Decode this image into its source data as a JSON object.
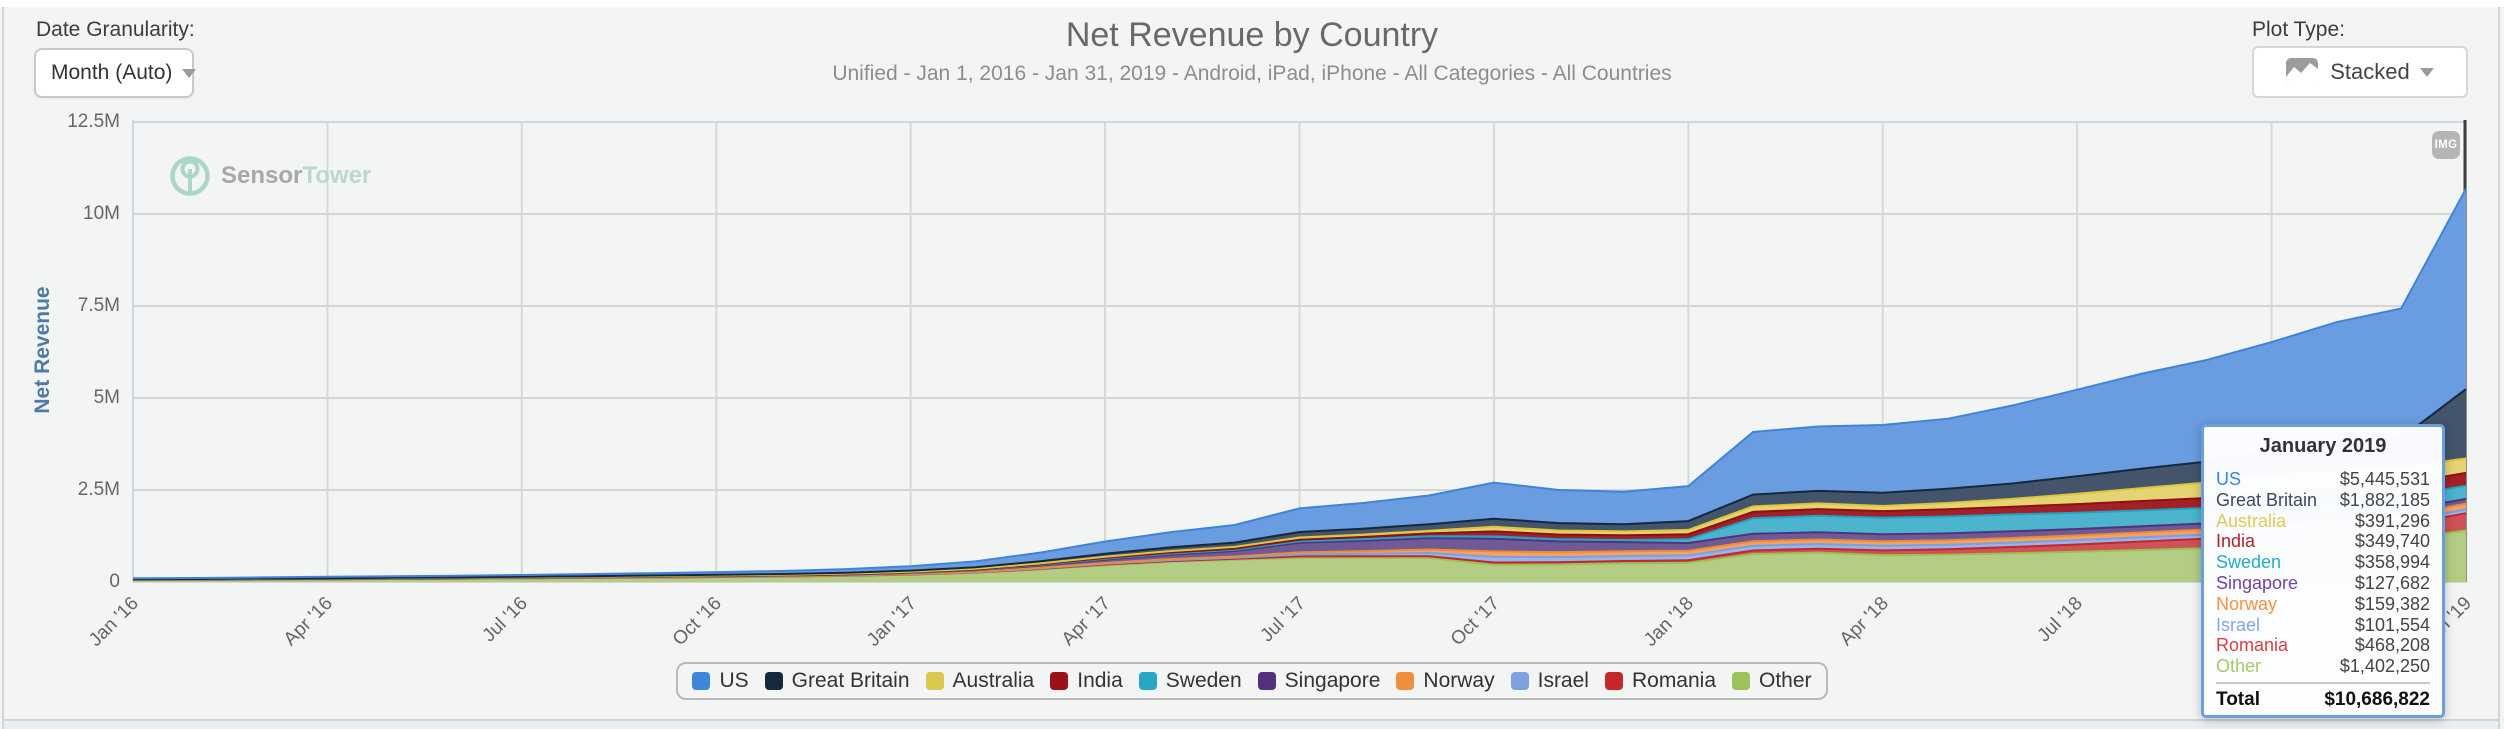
{
  "header": {
    "date_granularity_label": "Date Granularity:",
    "date_granularity_value": "Month (Auto)",
    "title": "Net Revenue by Country",
    "subtitle": "Unified - Jan 1, 2016 - Jan 31, 2019 - Android, iPad, iPhone - All Categories - All Countries",
    "plot_type_label": "Plot Type:",
    "plot_type_value": "Stacked"
  },
  "watermark": {
    "brand_bold": "Sensor",
    "brand_light": "Tower"
  },
  "img_badge_label": "IMG",
  "chart_data": {
    "type": "area",
    "stacked": true,
    "title": "Net Revenue by Country",
    "subtitle": "Unified - Jan 1, 2016 - Jan 31, 2019 - Android, iPad, iPhone - All Categories - All Countries",
    "ylabel": "Net Revenue",
    "ylim": [
      0,
      12500000
    ],
    "ytick_labels": [
      "0",
      "2.5M",
      "5M",
      "7.5M",
      "10M",
      "12.5M"
    ],
    "xtick_labels": [
      "Jan '16",
      "Apr '16",
      "Jul '16",
      "Oct '16",
      "Jan '17",
      "Apr '17",
      "Jul '17",
      "Oct '17",
      "Jan '18",
      "Apr '18",
      "Jul '18",
      "Oct '18",
      "Jan '19"
    ],
    "months": [
      "Jan 2016",
      "Feb 2016",
      "Mar 2016",
      "Apr 2016",
      "May 2016",
      "Jun 2016",
      "Jul 2016",
      "Aug 2016",
      "Sep 2016",
      "Oct 2016",
      "Nov 2016",
      "Dec 2016",
      "Jan 2017",
      "Feb 2017",
      "Mar 2017",
      "Apr 2017",
      "May 2017",
      "Jun 2017",
      "Jul 2017",
      "Aug 2017",
      "Sep 2017",
      "Oct 2017",
      "Nov 2017",
      "Dec 2017",
      "Jan 2018",
      "Feb 2018",
      "Mar 2018",
      "Apr 2018",
      "May 2018",
      "Jun 2018",
      "Jul 2018",
      "Aug 2018",
      "Sep 2018",
      "Oct 2018",
      "Nov 2018",
      "Dec 2018",
      "Jan 2019"
    ],
    "legend_position": "bottom",
    "grid": true,
    "series": [
      {
        "name": "US",
        "fill": "#699ddf",
        "line": "#3f83dc",
        "legend_color": "#3d85dd",
        "values": [
          25000,
          28000,
          32000,
          36000,
          40000,
          44000,
          50000,
          57000,
          64000,
          73000,
          82000,
          97000,
          120000,
          160000,
          235000,
          330000,
          410000,
          480000,
          640000,
          700000,
          780000,
          980000,
          900000,
          880000,
          950000,
          1700000,
          1750000,
          1840000,
          1900000,
          2120000,
          2350000,
          2580000,
          2760000,
          2980000,
          3340000,
          3520000,
          5445531
        ]
      },
      {
        "name": "Great Britain",
        "fill": "#44556b",
        "line": "#16283f",
        "legend_color": "#17293f",
        "values": [
          6000,
          7000,
          8000,
          9000,
          10000,
          11000,
          13000,
          15000,
          17000,
          19000,
          22000,
          26000,
          32000,
          42000,
          60000,
          83000,
          100000,
          115000,
          150000,
          160000,
          175000,
          220000,
          200000,
          195000,
          240000,
          320000,
          340000,
          360000,
          390000,
          420000,
          480000,
          530000,
          570000,
          620000,
          700000,
          800000,
          1882185
        ]
      },
      {
        "name": "Australia",
        "fill": "#e5d472",
        "line": "#dcc63e",
        "legend_color": "#ddc84f",
        "values": [
          3000,
          3400,
          3900,
          4400,
          4800,
          5300,
          5900,
          6700,
          7500,
          8400,
          9400,
          11000,
          13000,
          17000,
          24000,
          33000,
          41000,
          47000,
          60000,
          65000,
          73000,
          125000,
          110000,
          105000,
          115000,
          150000,
          155000,
          140000,
          170000,
          210000,
          280000,
          350000,
          420000,
          520000,
          470000,
          450000,
          391296
        ]
      },
      {
        "name": "India",
        "fill": "#a32126",
        "line": "#8e0f14",
        "legend_color": "#9c1117",
        "values": [
          2000,
          2200,
          2500,
          2800,
          3100,
          3400,
          3800,
          4300,
          4800,
          5400,
          6000,
          7000,
          9000,
          12000,
          17000,
          23000,
          28000,
          33000,
          43000,
          60000,
          80000,
          136000,
          130000,
          128000,
          140000,
          175000,
          180000,
          180000,
          195000,
          210000,
          235000,
          255000,
          270000,
          290000,
          320000,
          335000,
          349740
        ]
      },
      {
        "name": "Sweden",
        "fill": "#4cb4cd",
        "line": "#1fa3c4",
        "legend_color": "#27a6c5",
        "values": [
          2000,
          2200,
          2500,
          2900,
          3200,
          3500,
          3900,
          4400,
          5000,
          5600,
          6200,
          7300,
          9000,
          12000,
          17000,
          23000,
          28000,
          32000,
          42000,
          45000,
          50000,
          63000,
          58000,
          57000,
          100000,
          420000,
          450000,
          450000,
          460000,
          460000,
          440000,
          430000,
          420000,
          410000,
          395000,
          380000,
          358994
        ]
      },
      {
        "name": "Singapore",
        "fill": "#6f5a95",
        "line": "#50327f",
        "legend_color": "#53317e",
        "values": [
          1000,
          1500,
          2300,
          3200,
          4200,
          5300,
          6600,
          8400,
          10300,
          12800,
          15500,
          19500,
          26000,
          38000,
          60000,
          91000,
          122000,
          151000,
          260000,
          280000,
          310000,
          345000,
          290000,
          250000,
          210000,
          200000,
          195000,
          190000,
          185000,
          180000,
          175000,
          170000,
          165000,
          160000,
          150000,
          140000,
          127682
        ]
      },
      {
        "name": "Norway",
        "fill": "#f2a263",
        "line": "#ee8a35",
        "legend_color": "#ef8f3e",
        "values": [
          2000,
          2200,
          2500,
          2800,
          3100,
          3400,
          3800,
          4300,
          4800,
          5400,
          6000,
          7000,
          9000,
          12000,
          17000,
          23000,
          29000,
          34000,
          60000,
          75000,
          95000,
          150000,
          135000,
          130000,
          128000,
          125000,
          122000,
          120000,
          122000,
          125000,
          128000,
          132000,
          136000,
          140000,
          148000,
          152000,
          159382
        ]
      },
      {
        "name": "Israel",
        "fill": "#98b4e8",
        "line": "#7b9fe0",
        "legend_color": "#7ea1e2",
        "values": [
          1500,
          1700,
          1900,
          2200,
          2400,
          2700,
          3000,
          3400,
          3800,
          4300,
          4800,
          5600,
          7000,
          9000,
          13000,
          18000,
          23000,
          27000,
          50000,
          65000,
          85000,
          150000,
          140000,
          135000,
          132000,
          130000,
          128000,
          126000,
          124000,
          122000,
          118000,
          115000,
          112000,
          110000,
          106000,
          104000,
          101554
        ]
      },
      {
        "name": "Romania",
        "fill": "#d05156",
        "line": "#c2272c",
        "legend_color": "#c5282c",
        "values": [
          1000,
          1200,
          1500,
          1800,
          2100,
          2400,
          2800,
          3300,
          3800,
          4400,
          5000,
          6000,
          7500,
          10000,
          14000,
          19000,
          24000,
          28000,
          38000,
          42000,
          48000,
          63000,
          60000,
          60000,
          70000,
          95000,
          105000,
          130000,
          150000,
          170000,
          200000,
          230000,
          260000,
          300000,
          350000,
          400000,
          468208
        ]
      },
      {
        "name": "Other",
        "fill": "#b3cd84",
        "line": "#9cc153",
        "legend_color": "#9dc25c",
        "values": [
          56500,
          60600,
          67900,
          74900,
          82100,
          89000,
          97200,
          108200,
          119000,
          131700,
          143100,
          163600,
          197500,
          248000,
          343000,
          457000,
          545000,
          603000,
          657000,
          658000,
          654000,
          468000,
          477000,
          510000,
          520000,
          760000,
          800000,
          730000,
          740000,
          780000,
          820000,
          870000,
          920000,
          990000,
          1080000,
          1150000,
          1402250
        ]
      }
    ]
  },
  "tooltip": {
    "title": "January 2019",
    "rows": [
      {
        "name": "US",
        "value": "$5,445,531",
        "color": "#3c82dd"
      },
      {
        "name": "Great Britain",
        "value": "$1,882,185",
        "color": "#374b63"
      },
      {
        "name": "Australia",
        "value": "$391,296",
        "color": "#e0ca5a"
      },
      {
        "name": "India",
        "value": "$349,740",
        "color": "#a8272c"
      },
      {
        "name": "Sweden",
        "value": "$358,994",
        "color": "#29a9c9"
      },
      {
        "name": "Singapore",
        "value": "$127,682",
        "color": "#7044a5"
      },
      {
        "name": "Norway",
        "value": "$159,382",
        "color": "#f5923e"
      },
      {
        "name": "Israel",
        "value": "$101,554",
        "color": "#83a6e5"
      },
      {
        "name": "Romania",
        "value": "$468,208",
        "color": "#d63f44"
      },
      {
        "name": "Other",
        "value": "$1,402,250",
        "color": "#a5c968"
      }
    ],
    "total_label": "Total",
    "total_value": "$10,686,822"
  }
}
